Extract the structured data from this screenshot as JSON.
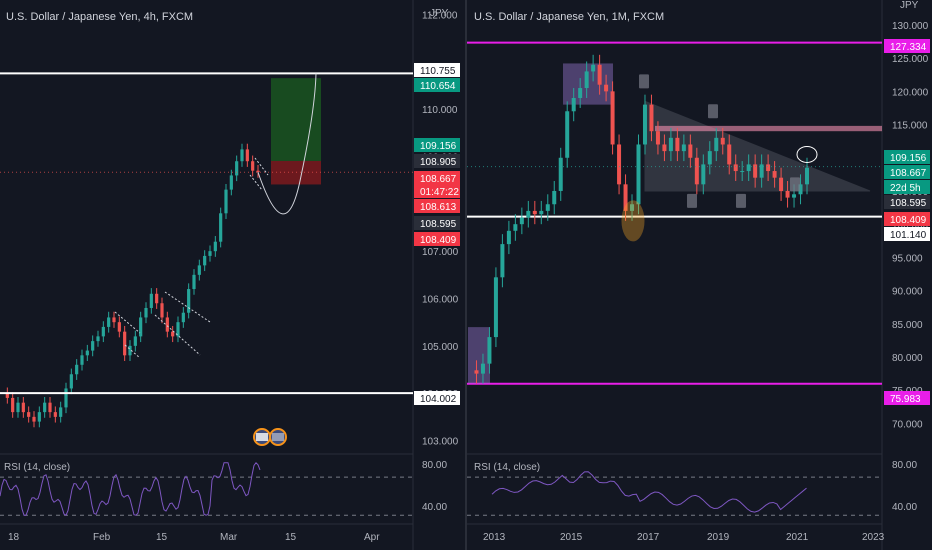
{
  "colors": {
    "background": "#131722",
    "up": "#26a69a",
    "down": "#ef5350",
    "white_line": "#ffffff",
    "magenta": "#e91ee9",
    "rsi": "#7e57c2",
    "green_tag": "#089981",
    "red_tag": "#f23645"
  },
  "left": {
    "title": "U.S. Dollar / Japanese Yen, 4h, FXCM",
    "currency": "JPY",
    "y_ticks": [
      "112.000",
      "110.000",
      "109.000",
      "108.000",
      "107.000",
      "106.000",
      "105.000",
      "104.000",
      "103.000"
    ],
    "x_ticks": [
      "18",
      "Feb",
      "15",
      "Mar",
      "15",
      "Apr"
    ],
    "price_tags": [
      {
        "label": "110.755",
        "kind": "white"
      },
      {
        "label": "110.654",
        "kind": "green"
      },
      {
        "label": "109.156",
        "kind": "green"
      },
      {
        "label": "108.905",
        "kind": "dark"
      },
      {
        "label": "108.667",
        "kind": "red"
      },
      {
        "label": "01:47:22",
        "kind": "red"
      },
      {
        "label": "108.613",
        "kind": "red"
      },
      {
        "label": "108.595",
        "kind": "dark"
      },
      {
        "label": "108.409",
        "kind": "red"
      },
      {
        "label": "104.002",
        "kind": "white"
      }
    ],
    "rsi": {
      "label": "RSI (14, close)",
      "ticks": [
        "80.00",
        "40.00"
      ]
    }
  },
  "right": {
    "title": "U.S. Dollar / Japanese Yen, 1M, FXCM",
    "currency": "JPY",
    "y_ticks": [
      "130.000",
      "125.000",
      "120.000",
      "115.000",
      "110.000",
      "105.000",
      "100.000",
      "95.000",
      "90.000",
      "85.000",
      "80.000",
      "75.000",
      "70.000"
    ],
    "x_ticks": [
      "2013",
      "2015",
      "2017",
      "2019",
      "2021",
      "2023"
    ],
    "price_tags": [
      {
        "label": "127.334",
        "kind": "magenta"
      },
      {
        "label": "109.156",
        "kind": "green"
      },
      {
        "label": "108.667",
        "kind": "green"
      },
      {
        "label": "22d 5h",
        "kind": "green"
      },
      {
        "label": "108.595",
        "kind": "dark"
      },
      {
        "label": "108.409",
        "kind": "red"
      },
      {
        "label": "101.140",
        "kind": "white"
      },
      {
        "label": "75.983",
        "kind": "magenta"
      }
    ],
    "rsi": {
      "label": "RSI (14, close)",
      "ticks": [
        "80.00",
        "40.00"
      ]
    }
  },
  "chart_data": [
    {
      "type": "candlestick",
      "title": "U.S. Dollar / Japanese Yen, 4h, FXCM",
      "x_ticks": [
        "18",
        "Feb",
        "15",
        "Mar",
        "15",
        "Apr"
      ],
      "ylim": [
        102.8,
        112.2
      ],
      "close_path": [
        104.0,
        103.9,
        103.6,
        103.8,
        103.6,
        103.5,
        103.4,
        103.6,
        103.8,
        103.6,
        103.5,
        103.7,
        104.1,
        104.4,
        104.6,
        104.8,
        104.9,
        105.1,
        105.2,
        105.4,
        105.6,
        105.5,
        105.3,
        104.8,
        105.0,
        105.2,
        105.6,
        105.8,
        106.1,
        105.9,
        105.6,
        105.3,
        105.2,
        105.5,
        105.7,
        106.2,
        106.5,
        106.7,
        106.9,
        107.0,
        107.2,
        107.8,
        108.3,
        108.6,
        108.9,
        109.15,
        108.9,
        108.7,
        108.67
      ],
      "horizontal_lines": [
        110.755,
        104.002
      ],
      "position_target": 110.654,
      "position_entry": 108.905,
      "position_stop": 108.409,
      "projection_endpoint": 110.754,
      "last_price": 108.667,
      "rsi_range": [
        25,
        90
      ],
      "rsi_levels": [
        70,
        30
      ]
    },
    {
      "type": "candlestick",
      "title": "U.S. Dollar / Japanese Yen, 1M, FXCM",
      "x_ticks": [
        "2013",
        "2015",
        "2017",
        "2019",
        "2021",
        "2023"
      ],
      "ylim": [
        66,
        133
      ],
      "close_path": [
        78.0,
        77.5,
        79.0,
        83.0,
        92.0,
        97.0,
        99.0,
        100.0,
        101.0,
        102.0,
        101.5,
        102.0,
        103.0,
        105.0,
        110.0,
        117.0,
        119.0,
        120.5,
        123.0,
        124.0,
        121.0,
        120.0,
        112.0,
        106.0,
        102.0,
        103.0,
        112.0,
        118.0,
        114.0,
        112.0,
        111.0,
        113.0,
        111.0,
        112.0,
        110.0,
        106.0,
        109.0,
        111.0,
        113.0,
        112.0,
        109.0,
        108.0,
        108.0,
        109.0,
        107.0,
        109.0,
        108.0,
        107.0,
        105.0,
        104.0,
        104.5,
        106.0,
        108.5
      ],
      "horizontal_lines": [
        127.334,
        75.983,
        101.14
      ],
      "resistance_band": [
        114.0,
        114.8
      ],
      "triangle": {
        "top": 118.5,
        "bottom": 105.0
      },
      "last_price": 108.667,
      "rsi_range": [
        25,
        90
      ],
      "rsi_levels": [
        70,
        30
      ]
    }
  ]
}
